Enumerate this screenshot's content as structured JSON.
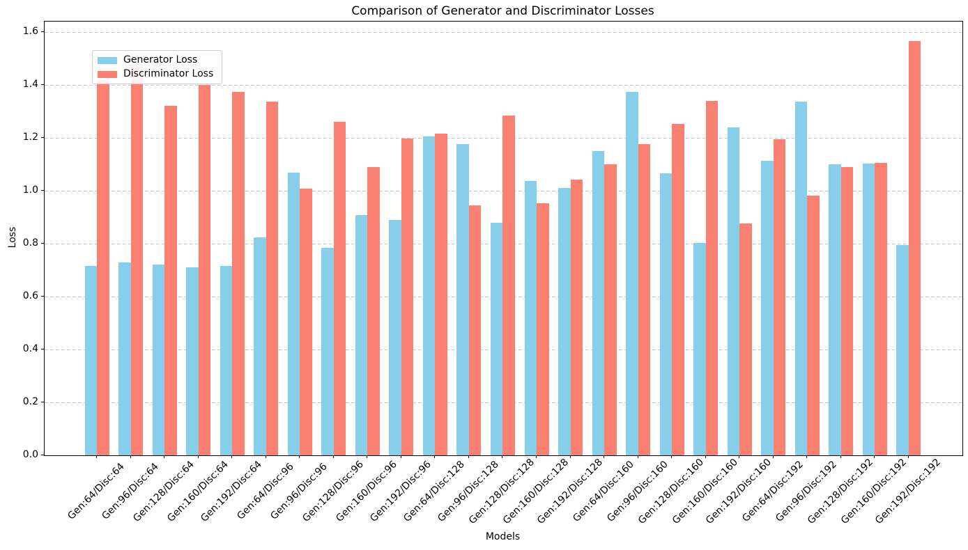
{
  "chart_data": {
    "type": "bar",
    "title": "Comparison of Generator and Discriminator Losses",
    "xlabel": "Models",
    "ylabel": "Loss",
    "categories": [
      "Gen:64/Disc:64",
      "Gen:96/Disc:64",
      "Gen:128/Disc:64",
      "Gen:160/Disc:64",
      "Gen:192/Disc:64",
      "Gen:64/Disc:96",
      "Gen:96/Disc:96",
      "Gen:128/Disc:96",
      "Gen:160/Disc:96",
      "Gen:192/Disc:96",
      "Gen:64/Disc:128",
      "Gen:96/Disc:128",
      "Gen:128/Disc:128",
      "Gen:160/Disc:128",
      "Gen:192/Disc:128",
      "Gen:64/Disc:160",
      "Gen:96/Disc:160",
      "Gen:128/Disc:160",
      "Gen:160/Disc:160",
      "Gen:192/Disc:160",
      "Gen:64/Disc:192",
      "Gen:96/Disc:192",
      "Gen:128/Disc:192",
      "Gen:160/Disc:192",
      "Gen:192/Disc:192"
    ],
    "series": [
      {
        "name": "Generator Loss",
        "color": "#87CEEB",
        "values": [
          0.716,
          0.73,
          0.722,
          0.712,
          0.715,
          0.823,
          1.068,
          0.784,
          0.908,
          0.889,
          1.207,
          1.177,
          0.878,
          1.038,
          1.012,
          1.15,
          1.374,
          1.066,
          0.802,
          1.239,
          1.113,
          1.336,
          1.101,
          1.102,
          0.794
        ]
      },
      {
        "name": "Discriminator Loss",
        "color": "#FA8072",
        "values": [
          1.42,
          1.47,
          1.322,
          1.4,
          1.373,
          1.338,
          1.008,
          1.26,
          1.091,
          1.197,
          1.217,
          0.945,
          1.285,
          0.953,
          1.043,
          1.1,
          1.176,
          1.252,
          1.341,
          0.876,
          1.195,
          0.982,
          1.09,
          1.105,
          1.566
        ]
      }
    ],
    "ylim": [
      0.0,
      1.64
    ],
    "yticks": [
      0.0,
      0.2,
      0.4,
      0.6,
      0.8,
      1.0,
      1.2,
      1.4,
      1.6
    ],
    "ytick_labels": [
      "0.0",
      "0.2",
      "0.4",
      "0.6",
      "0.8",
      "1.0",
      "1.2",
      "1.4",
      "1.6"
    ],
    "grid": "horizontal-dashed",
    "legend_position": "upper-left",
    "gridline_color": "#cccccc",
    "axis_color": "#000000"
  }
}
